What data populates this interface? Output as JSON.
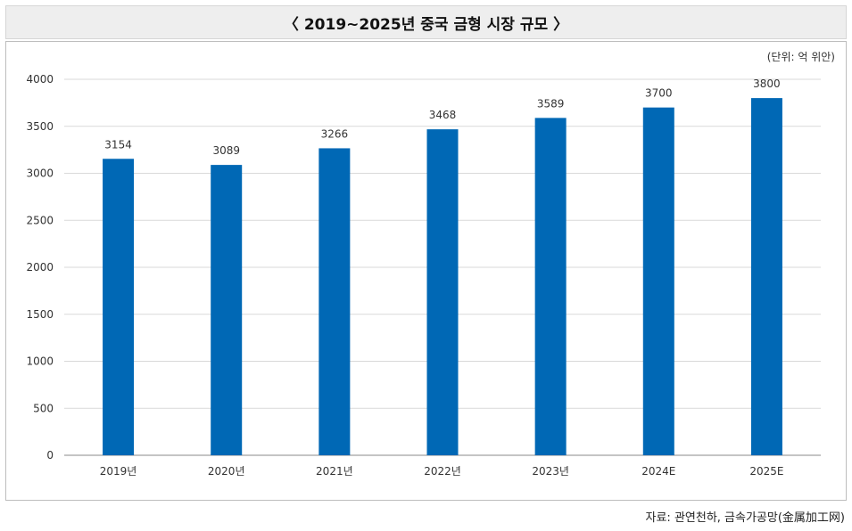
{
  "header": {
    "title": "〈 2019~2025년 중국 금형 시장 규모 〉"
  },
  "unit_label": "(단위: 억 위안)",
  "source": "자료: 관연천하, 금속가공망(金属加工网)",
  "colors": {
    "bar": "#0068b5",
    "grid": "#d9d9d9",
    "axis": "#888888"
  },
  "chart_data": {
    "type": "bar",
    "title": "〈 2019~2025년 중국 금형 시장 규모 〉",
    "xlabel": "",
    "ylabel": "",
    "categories": [
      "2019년",
      "2020년",
      "2021년",
      "2022년",
      "2023년",
      "2024E",
      "2025E"
    ],
    "values": [
      3154,
      3089,
      3266,
      3468,
      3589,
      3700,
      3800
    ],
    "ylim": [
      0,
      4000
    ],
    "yticks": [
      0,
      500,
      1000,
      1500,
      2000,
      2500,
      3000,
      3500,
      4000
    ],
    "grid": true,
    "legend": "none"
  }
}
